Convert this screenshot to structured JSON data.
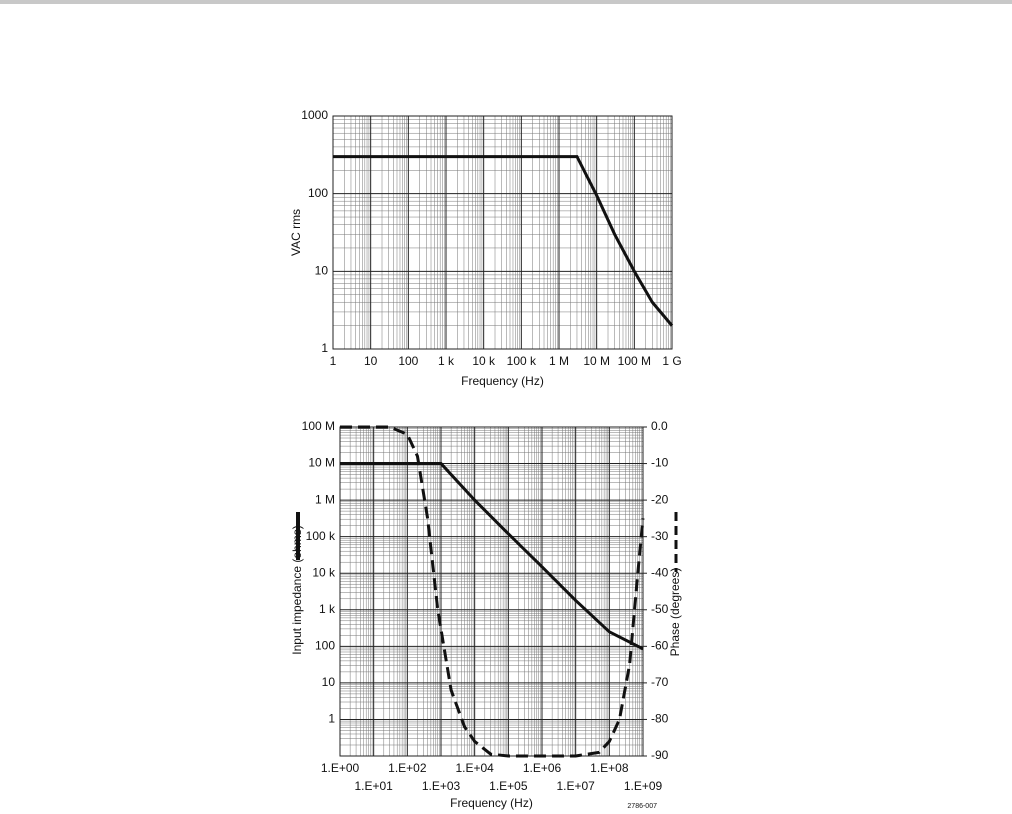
{
  "chart_data": [
    {
      "type": "line",
      "xscale": "log",
      "yscale": "log",
      "grid": true,
      "minor_grid": true,
      "xlabel": "Frequency (Hz)",
      "ylabel": "VAC rms",
      "xlim": [
        1,
        1000000000
      ],
      "ylim": [
        1,
        1000
      ],
      "xticks": [
        1,
        10,
        100,
        {
          "value": 1000,
          "label": "1 k"
        },
        {
          "value": 10000,
          "label": "10 k"
        },
        {
          "value": 100000,
          "label": "100 k"
        },
        {
          "value": 1000000,
          "label": "1 M"
        },
        {
          "value": 10000000,
          "label": "10 M"
        },
        {
          "value": 100000000,
          "label": "100 M"
        },
        {
          "value": 1000000000,
          "label": "1 G"
        }
      ],
      "yticks": [
        1,
        10,
        100,
        1000
      ],
      "series": [
        {
          "color": "#111111",
          "style": "solid",
          "x": [
            1,
            3000000,
            10000000,
            30000000,
            100000000,
            300000000,
            1000000000
          ],
          "values": [
            300,
            300,
            95,
            30,
            10,
            4,
            2
          ]
        }
      ]
    },
    {
      "type": "line",
      "xscale": "log",
      "yscale": "log",
      "grid": true,
      "minor_grid": true,
      "xlabel": "Frequency (Hz)",
      "ylabel": "Input impedance (ohms)",
      "y2label": "Phase (degrees)",
      "annotation": "2786-007",
      "xlim": [
        1,
        1000000000
      ],
      "ylim": [
        0.1,
        100000000
      ],
      "y2lim": [
        -90,
        0
      ],
      "xticks": [
        {
          "value": 1,
          "label": "1.E+00"
        },
        {
          "value": 10,
          "label": "1.E+01"
        },
        {
          "value": 100,
          "label": "1.E+02"
        },
        {
          "value": 1000,
          "label": "1.E+03"
        },
        {
          "value": 10000,
          "label": "1.E+04"
        },
        {
          "value": 100000,
          "label": "1.E+05"
        },
        {
          "value": 1000000,
          "label": "1.E+06"
        },
        {
          "value": 10000000,
          "label": "1.E+07"
        },
        {
          "value": 100000000,
          "label": "1.E+08"
        },
        {
          "value": 1000000000,
          "label": "1.E+09"
        }
      ],
      "yticks": [
        1,
        10,
        100,
        {
          "value": 1000,
          "label": "1 k"
        },
        {
          "value": 10000,
          "label": "10 k"
        },
        {
          "value": 100000,
          "label": "100 k"
        },
        {
          "value": 1000000,
          "label": "1 M"
        },
        {
          "value": 10000000,
          "label": "10 M"
        },
        {
          "value": 100000000,
          "label": "100 M"
        }
      ],
      "y2ticks": [
        {
          "value": 0,
          "label": "0.0"
        },
        -10,
        -20,
        -30,
        -40,
        -50,
        -60,
        -70,
        -80,
        -90
      ],
      "series": [
        {
          "color": "#111111",
          "style": "solid",
          "x": [
            1,
            1000,
            10000,
            100000,
            1000000,
            10000000,
            100000000,
            1000000000
          ],
          "values": [
            10000000,
            10000000,
            1000000,
            120000,
            15000,
            1800,
            250,
            85
          ]
        },
        {
          "color": "#111111",
          "style": "dashed",
          "axis": "y2",
          "x": [
            1,
            30,
            100,
            200,
            400,
            800,
            2000,
            5000,
            10000,
            30000,
            100000,
            10000000,
            50000000,
            100000000,
            200000000,
            400000000,
            700000000,
            1000000000
          ],
          "values": [
            0,
            0,
            -2,
            -8,
            -25,
            -50,
            -72,
            -82,
            -86,
            -89.5,
            -90,
            -90,
            -89,
            -86,
            -80,
            -65,
            -40,
            -25
          ]
        }
      ]
    }
  ]
}
